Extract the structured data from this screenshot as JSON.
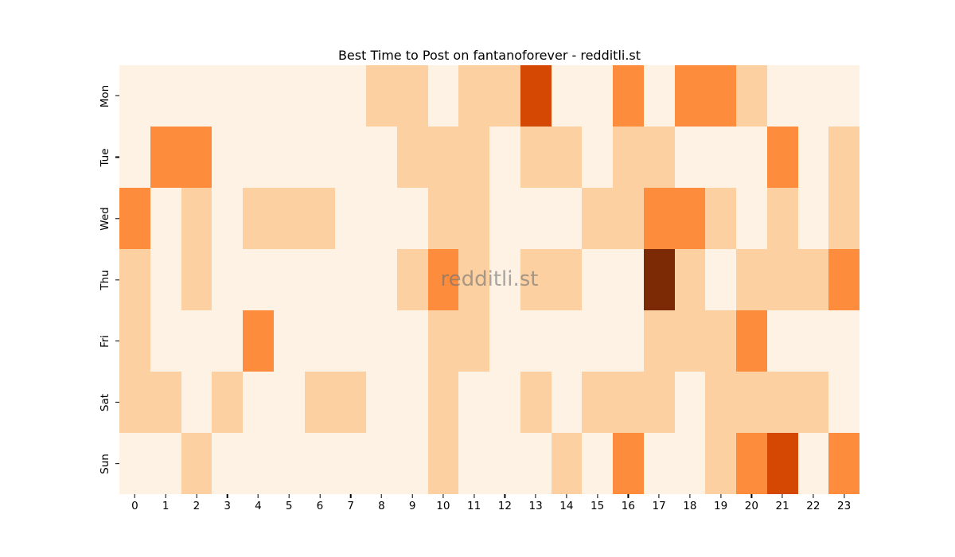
{
  "figure": {
    "background_color": "#ffffff"
  },
  "chart_data": {
    "type": "heatmap",
    "title": "Best Time to Post on fantanoforever - redditli.st",
    "watermark": "redditli.st",
    "xlabel": "",
    "ylabel": "",
    "x_labels": [
      "0",
      "1",
      "2",
      "3",
      "4",
      "5",
      "6",
      "7",
      "8",
      "9",
      "10",
      "11",
      "12",
      "13",
      "14",
      "15",
      "16",
      "17",
      "18",
      "19",
      "20",
      "21",
      "22",
      "23"
    ],
    "y_labels": [
      "Mon",
      "Tue",
      "Wed",
      "Thu",
      "Fri",
      "Sat",
      "Sun"
    ],
    "legend_position": "none",
    "grid": "off",
    "colormap_name": "Oranges",
    "palette": [
      "#fdf2e4",
      "#fcd0a1",
      "#fd8c3c",
      "#d54804",
      "#7c2a06"
    ],
    "value_meaning": "relative posting activity level read from cell color, 0 = lowest, 4 = highest",
    "values": [
      [
        0,
        0,
        0,
        0,
        0,
        0,
        0,
        0,
        1,
        1,
        0,
        1,
        1,
        3,
        0,
        0,
        2,
        0,
        2,
        2,
        1,
        0,
        0,
        0
      ],
      [
        0,
        2,
        2,
        0,
        0,
        0,
        0,
        0,
        0,
        1,
        1,
        1,
        0,
        1,
        1,
        0,
        1,
        1,
        0,
        0,
        0,
        2,
        0,
        1
      ],
      [
        2,
        0,
        1,
        0,
        1,
        1,
        1,
        0,
        0,
        0,
        1,
        1,
        0,
        0,
        0,
        1,
        1,
        2,
        2,
        1,
        0,
        1,
        0,
        1
      ],
      [
        1,
        0,
        1,
        0,
        0,
        0,
        0,
        0,
        0,
        1,
        2,
        1,
        0,
        1,
        1,
        0,
        0,
        4,
        1,
        0,
        1,
        1,
        1,
        2
      ],
      [
        1,
        0,
        0,
        0,
        2,
        0,
        0,
        0,
        0,
        0,
        1,
        1,
        0,
        0,
        0,
        0,
        0,
        1,
        1,
        1,
        2,
        0,
        0,
        0
      ],
      [
        1,
        1,
        0,
        1,
        0,
        0,
        1,
        1,
        0,
        0,
        1,
        0,
        0,
        1,
        0,
        1,
        1,
        1,
        0,
        1,
        1,
        1,
        1,
        0
      ],
      [
        0,
        0,
        1,
        0,
        0,
        0,
        0,
        0,
        0,
        0,
        1,
        0,
        0,
        0,
        1,
        0,
        2,
        0,
        0,
        1,
        2,
        3,
        0,
        2
      ]
    ]
  }
}
